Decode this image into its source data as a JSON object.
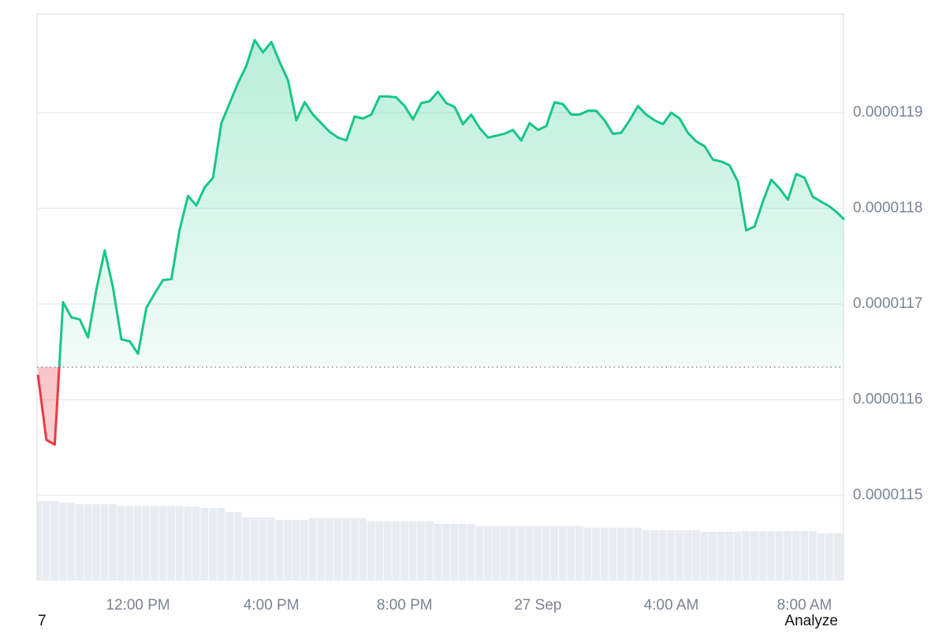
{
  "chart_data": {
    "type": "line",
    "x": [
      9.0,
      9.25,
      9.5,
      9.75,
      10.0,
      10.25,
      10.5,
      10.75,
      11.0,
      11.25,
      11.5,
      11.75,
      12.0,
      12.25,
      12.5,
      12.75,
      13.0,
      13.25,
      13.5,
      13.75,
      14.0,
      14.25,
      14.5,
      14.75,
      15.0,
      15.25,
      15.5,
      15.75,
      16.0,
      16.25,
      16.5,
      16.75,
      17.0,
      17.25,
      17.5,
      17.75,
      18.0,
      18.25,
      18.5,
      18.75,
      19.0,
      19.25,
      19.5,
      19.75,
      20.0,
      20.25,
      20.5,
      20.75,
      21.0,
      21.25,
      21.5,
      21.75,
      22.0,
      22.25,
      22.5,
      22.75,
      23.0,
      23.25,
      23.5,
      23.75,
      24.0,
      24.25,
      24.5,
      24.75,
      25.0,
      25.25,
      25.5,
      25.75,
      26.0,
      26.25,
      26.5,
      26.75,
      27.0,
      27.25,
      27.5,
      27.75,
      28.0,
      28.25,
      28.5,
      28.75,
      29.0,
      29.25,
      29.5,
      29.75,
      30.0,
      30.25,
      30.5,
      30.75,
      31.0,
      31.25,
      31.5,
      31.75,
      32.0,
      32.25,
      32.5,
      32.75,
      33.0,
      33.17
    ],
    "series": [
      {
        "color": "#16c784",
        "negative_color": "#ea3943",
        "values": [
          1.1625e-05,
          1.1558e-05,
          1.1553e-05,
          1.1702e-05,
          1.1686e-05,
          1.1684e-05,
          1.1665e-05,
          1.1715e-05,
          1.1756e-05,
          1.1717e-05,
          1.1663e-05,
          1.1661e-05,
          1.1648e-05,
          1.1696e-05,
          1.1711e-05,
          1.1725e-05,
          1.1726e-05,
          1.1778e-05,
          1.1813e-05,
          1.1803e-05,
          1.1822e-05,
          1.1832e-05,
          1.1889e-05,
          1.191e-05,
          1.1931e-05,
          1.1949e-05,
          1.1976e-05,
          1.1963e-05,
          1.1974e-05,
          1.1953e-05,
          1.1934e-05,
          1.1892e-05,
          1.1911e-05,
          1.1898e-05,
          1.1889e-05,
          1.188e-05,
          1.1874e-05,
          1.1871e-05,
          1.1896e-05,
          1.1894e-05,
          1.1898e-05,
          1.1917e-05,
          1.1917e-05,
          1.1916e-05,
          1.1907e-05,
          1.1893e-05,
          1.191e-05,
          1.1912e-05,
          1.1922e-05,
          1.191e-05,
          1.1906e-05,
          1.1888e-05,
          1.1898e-05,
          1.1884e-05,
          1.1874e-05,
          1.1876e-05,
          1.1878e-05,
          1.1882e-05,
          1.1871e-05,
          1.1889e-05,
          1.1882e-05,
          1.1886e-05,
          1.1911e-05,
          1.1909e-05,
          1.1898e-05,
          1.1898e-05,
          1.1902e-05,
          1.1902e-05,
          1.1892e-05,
          1.1878e-05,
          1.1879e-05,
          1.1892e-05,
          1.1907e-05,
          1.1898e-05,
          1.1892e-05,
          1.1888e-05,
          1.19e-05,
          1.1894e-05,
          1.1879e-05,
          1.187e-05,
          1.1865e-05,
          1.1851e-05,
          1.1849e-05,
          1.1845e-05,
          1.1828e-05,
          1.1777e-05,
          1.1781e-05,
          1.1807e-05,
          1.183e-05,
          1.1821e-05,
          1.1809e-05,
          1.1836e-05,
          1.1832e-05,
          1.1812e-05,
          1.1807e-05,
          1.1802e-05,
          1.1795e-05,
          1.1789e-05
        ]
      }
    ],
    "volume": {
      "color": "#e8ecf1",
      "ylim": [
        0,
        720
      ],
      "values": [
        101,
        101,
        101,
        99,
        99,
        97,
        97,
        97,
        97,
        97,
        95,
        95,
        95,
        95,
        95,
        95,
        95,
        95,
        94,
        94,
        92,
        92,
        92,
        87,
        87,
        80,
        80,
        80,
        80,
        77,
        77,
        77,
        77,
        79,
        79,
        79,
        79,
        79,
        79,
        79,
        75,
        75,
        75,
        75,
        75,
        75,
        75,
        75,
        72,
        72,
        72,
        72,
        72,
        69,
        69,
        69,
        69,
        69,
        69,
        69,
        69,
        69,
        69,
        69,
        69,
        69,
        67,
        67,
        67,
        67,
        67,
        67,
        67,
        64,
        64,
        64,
        64,
        64,
        64,
        64,
        62,
        62,
        62,
        62,
        62,
        63,
        63,
        63,
        63,
        63,
        63,
        63,
        63,
        63,
        60,
        60,
        60,
        60
      ]
    },
    "baseline": 1.1634e-05,
    "xlim": [
      8.97,
      33.17
    ],
    "xticks": [
      {
        "value": 12,
        "label": "12:00 PM"
      },
      {
        "value": 16,
        "label": "4:00 PM"
      },
      {
        "value": 20,
        "label": "8:00 PM"
      },
      {
        "value": 24,
        "label": "27 Sep"
      },
      {
        "value": 28,
        "label": "4:00 AM"
      },
      {
        "value": 32,
        "label": "8:00 AM"
      }
    ],
    "ylim": [
      1.1411e-05,
      1.2003e-05
    ],
    "yticks": [
      1.15e-05,
      1.16e-05,
      1.17e-05,
      1.18e-05,
      1.19e-05
    ],
    "grid": true
  },
  "footer": {
    "left": "7",
    "right": "Analyze"
  }
}
